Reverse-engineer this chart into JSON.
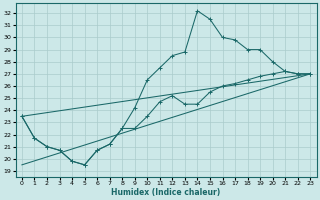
{
  "xlabel": "Humidex (Indice chaleur)",
  "bg_color": "#cce8e8",
  "grid_color": "#aacccc",
  "line_color": "#1a6868",
  "xlim": [
    -0.5,
    23.5
  ],
  "ylim": [
    18.5,
    32.8
  ],
  "yticks": [
    19,
    20,
    21,
    22,
    23,
    24,
    25,
    26,
    27,
    28,
    29,
    30,
    31,
    32
  ],
  "xticks": [
    0,
    1,
    2,
    3,
    4,
    5,
    6,
    7,
    8,
    9,
    10,
    11,
    12,
    13,
    14,
    15,
    16,
    17,
    18,
    19,
    20,
    21,
    22,
    23
  ],
  "line1_x": [
    0,
    1,
    2,
    3,
    4,
    5,
    6,
    7,
    8,
    9,
    10,
    11,
    12,
    13,
    14,
    15,
    16,
    17,
    18,
    19,
    20,
    21,
    22,
    23
  ],
  "line1_y": [
    23.5,
    21.7,
    21.0,
    20.7,
    19.8,
    19.5,
    20.7,
    21.2,
    22.5,
    24.2,
    26.5,
    27.5,
    28.5,
    28.8,
    32.2,
    31.5,
    30.0,
    29.8,
    29.0,
    29.0,
    28.0,
    27.2,
    27.0,
    27.0
  ],
  "line2_x": [
    0,
    1,
    2,
    3,
    4,
    5,
    6,
    7,
    8,
    9,
    10,
    11,
    12,
    13,
    14,
    15,
    16,
    17,
    18,
    19,
    20,
    21,
    22,
    23
  ],
  "line2_y": [
    23.5,
    21.7,
    21.0,
    20.7,
    19.8,
    19.5,
    20.7,
    21.2,
    22.5,
    22.5,
    23.5,
    24.7,
    25.2,
    24.5,
    24.5,
    25.5,
    26.0,
    26.2,
    26.5,
    26.8,
    27.0,
    27.2,
    27.0,
    27.0
  ],
  "line3_x": [
    0,
    23
  ],
  "line3_y": [
    23.5,
    27.0
  ],
  "line4_x": [
    0,
    23
  ],
  "line4_y": [
    19.5,
    27.0
  ]
}
